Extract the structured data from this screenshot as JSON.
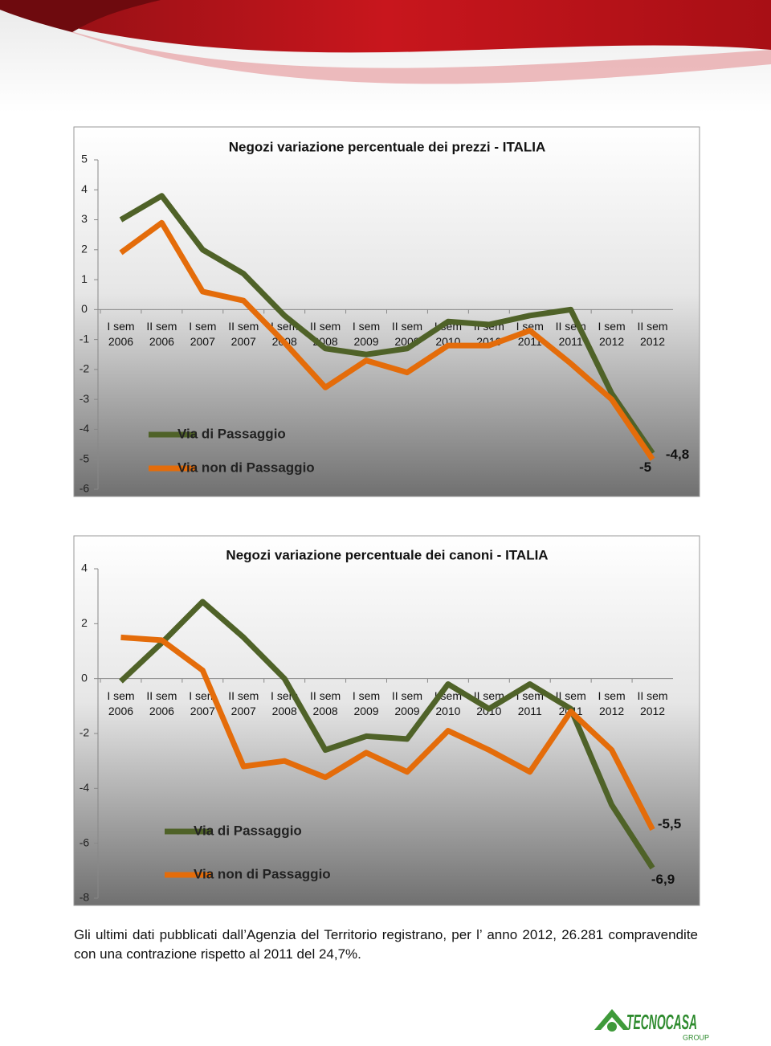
{
  "chart_data": [
    {
      "type": "line",
      "title": "Negozi variazione percentuale dei prezzi - ITALIA",
      "categories": [
        "I sem 2006",
        "II sem 2006",
        "I sem 2007",
        "II sem 2007",
        "I sem 2008",
        "II sem 2008",
        "I sem 2009",
        "II sem 2009",
        "I sem 2010",
        "II sem 2010",
        "I sem 2011",
        "II sem 2011",
        "I sem 2012",
        "II sem 2012"
      ],
      "series": [
        {
          "name": "Via di Passaggio",
          "color": "#4f6228",
          "values": [
            3.0,
            3.8,
            2.0,
            1.2,
            -0.2,
            -1.3,
            -1.5,
            -1.3,
            -0.4,
            -0.5,
            -0.2,
            0,
            -2.8,
            -4.8
          ],
          "value_labels": [
            null,
            null,
            null,
            null,
            null,
            null,
            null,
            null,
            null,
            null,
            null,
            null,
            null,
            "-4,8"
          ]
        },
        {
          "name": "Via non di Passaggio",
          "color": "#e46c0a",
          "values": [
            1.9,
            2.9,
            0.6,
            0.3,
            -1.1,
            -2.6,
            -1.7,
            -2.1,
            -1.2,
            -1.2,
            -0.7,
            -1.8,
            -3.0,
            -5
          ],
          "value_labels": [
            null,
            null,
            null,
            null,
            null,
            null,
            null,
            null,
            null,
            null,
            null,
            null,
            null,
            "-5"
          ]
        }
      ],
      "ylim": [
        -6,
        5
      ],
      "yticks": [
        5,
        4,
        3,
        2,
        1,
        0,
        -1,
        -2,
        -3,
        -4,
        -5,
        -6
      ]
    },
    {
      "type": "line",
      "title": "Negozi variazione percentuale dei canoni - ITALIA",
      "categories": [
        "I sem 2006",
        "II sem 2006",
        "I sem 2007",
        "II sem 2007",
        "I sem 2008",
        "II sem 2008",
        "I sem 2009",
        "II sem 2009",
        "I sem 2010",
        "II sem 2010",
        "I sem 2011",
        "II sem 2011",
        "I sem 2012",
        "II sem 2012"
      ],
      "series": [
        {
          "name": "Via di Passaggio",
          "color": "#4f6228",
          "values": [
            -0.1,
            1.3,
            2.8,
            1.5,
            0,
            -2.6,
            -2.1,
            -2.2,
            -0.2,
            -1.1,
            -0.2,
            -1.1,
            -4.6,
            -6.9
          ],
          "value_labels": [
            null,
            null,
            null,
            null,
            null,
            null,
            null,
            null,
            null,
            null,
            null,
            null,
            null,
            "-6,9"
          ]
        },
        {
          "name": "Via non di Passaggio",
          "color": "#e46c0a",
          "values": [
            1.5,
            1.4,
            0.3,
            -3.2,
            -3.0,
            -3.6,
            -2.7,
            -3.4,
            -1.9,
            -2.6,
            -3.4,
            -1.2,
            -2.6,
            -5.5
          ],
          "value_labels": [
            null,
            null,
            null,
            null,
            null,
            null,
            null,
            null,
            null,
            null,
            null,
            null,
            null,
            "-5,5"
          ]
        }
      ],
      "ylim": [
        -8,
        4
      ],
      "yticks": [
        4,
        2,
        0,
        -2,
        -4,
        -6,
        -8
      ]
    }
  ],
  "paragraph": "Gli ultimi dati pubblicati dall’Agenzia del Territorio registrano, per l’ anno 2012, 26.281 compravendite con una contrazione rispetto al 2011 del 24,7%.",
  "logo": {
    "name": "TECNOCASA",
    "sub": "GROUP"
  }
}
